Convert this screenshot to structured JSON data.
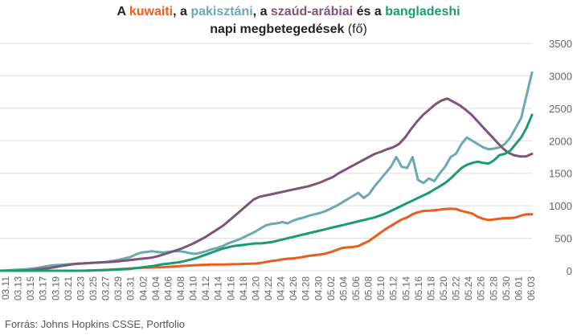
{
  "title": {
    "line1_prefix": "A ",
    "kuwait": "kuwaiti",
    "sep1": ", a ",
    "pakistan": "pakisztáni",
    "sep2": ", a ",
    "saudi": "szaúd-arábiai",
    "sep3": " és a ",
    "bangladesh": "bangladeshi",
    "line2_main": "napi megbetegedések",
    "line2_unit": " (fő)"
  },
  "source": "Forrás: Johns Hopkins CSSE, Portfolio",
  "colors": {
    "kuwait": "#ee5c1d",
    "pakistan": "#6aa9b0",
    "saudi": "#7e5579",
    "bangladesh": "#1a9b76",
    "grid": "#dddddd",
    "axis_text": "#666666"
  },
  "chart_data": {
    "type": "line",
    "x_tick_labels": [
      "03.11",
      "03.13",
      "03.15",
      "03.17",
      "03.19",
      "03.21",
      "03.23",
      "03.25",
      "03.27",
      "03.29",
      "03.31",
      "04.02",
      "04.04",
      "04.06",
      "04.08",
      "04.10",
      "04.12",
      "04.14",
      "04.16",
      "04.18",
      "04.20",
      "04.22",
      "04.24",
      "04.26",
      "04.28",
      "04.30",
      "05.02",
      "05.04",
      "05.06",
      "05.08",
      "05.10",
      "05.12",
      "05.14",
      "05.16",
      "05.18",
      "05.20",
      "05.22",
      "05.24",
      "05.26",
      "05.28",
      "05.30",
      "06.01",
      "06.03"
    ],
    "y_ticks": [
      0,
      500,
      1000,
      1500,
      2000,
      2500,
      3000,
      3500
    ],
    "ylim": [
      0,
      3500
    ],
    "grid": true,
    "y_axis_side": "right",
    "series": [
      {
        "name": "kuwaiti",
        "key": "kuwait",
        "values": [
          0,
          0,
          0,
          0,
          0,
          0,
          0,
          0,
          0,
          0,
          0,
          0,
          0,
          0,
          0,
          0,
          0,
          5,
          8,
          10,
          15,
          20,
          25,
          30,
          35,
          40,
          45,
          48,
          50,
          52,
          55,
          60,
          65,
          70,
          75,
          80,
          85,
          90,
          92,
          95,
          95,
          95,
          98,
          100,
          102,
          105,
          108,
          110,
          120,
          135,
          150,
          160,
          175,
          185,
          190,
          200,
          215,
          230,
          240,
          250,
          265,
          290,
          320,
          350,
          360,
          365,
          380,
          420,
          460,
          520,
          580,
          640,
          690,
          740,
          790,
          820,
          870,
          900,
          920,
          925,
          930,
          940,
          950,
          955,
          950,
          920,
          900,
          880,
          830,
          800,
          780,
          790,
          800,
          810,
          810,
          820,
          850,
          870,
          870
        ]
      },
      {
        "name": "pakisztáni",
        "key": "pakistan",
        "values": [
          0,
          5,
          10,
          15,
          20,
          25,
          35,
          45,
          60,
          75,
          85,
          90,
          95,
          100,
          105,
          110,
          115,
          120,
          125,
          130,
          140,
          155,
          170,
          190,
          210,
          250,
          280,
          290,
          300,
          290,
          280,
          290,
          300,
          300,
          290,
          270,
          260,
          280,
          300,
          330,
          350,
          380,
          420,
          450,
          480,
          520,
          560,
          600,
          650,
          700,
          720,
          730,
          750,
          730,
          770,
          800,
          820,
          850,
          870,
          890,
          920,
          960,
          1000,
          1050,
          1100,
          1150,
          1200,
          1120,
          1180,
          1300,
          1400,
          1500,
          1600,
          1750,
          1600,
          1580,
          1750,
          1400,
          1350,
          1420,
          1380,
          1500,
          1600,
          1750,
          1800,
          1950,
          2050,
          2000,
          1950,
          1900,
          1870,
          1880,
          1900,
          1950,
          2050,
          2200,
          2350,
          2700,
          3050
        ]
      },
      {
        "name": "szaúd-arábiai",
        "key": "saudi",
        "values": [
          0,
          0,
          0,
          0,
          5,
          10,
          20,
          30,
          40,
          55,
          70,
          85,
          100,
          110,
          115,
          120,
          125,
          130,
          135,
          140,
          150,
          160,
          170,
          180,
          190,
          200,
          220,
          250,
          280,
          310,
          340,
          380,
          420,
          470,
          520,
          580,
          640,
          700,
          780,
          860,
          940,
          1020,
          1100,
          1140,
          1160,
          1180,
          1200,
          1220,
          1240,
          1260,
          1280,
          1300,
          1330,
          1360,
          1400,
          1440,
          1500,
          1550,
          1600,
          1650,
          1700,
          1750,
          1800,
          1830,
          1870,
          1900,
          1950,
          2050,
          2180,
          2300,
          2400,
          2480,
          2560,
          2620,
          2650,
          2600,
          2550,
          2480,
          2400,
          2300,
          2200,
          2100,
          2000,
          1900,
          1820,
          1780,
          1760,
          1760,
          1800
        ]
      },
      {
        "name": "bangladeshi",
        "key": "bangladesh",
        "values": [
          0,
          0,
          0,
          0,
          0,
          0,
          0,
          0,
          0,
          0,
          0,
          0,
          0,
          0,
          0,
          0,
          2,
          5,
          8,
          10,
          12,
          15,
          20,
          25,
          30,
          40,
          50,
          60,
          70,
          85,
          100,
          110,
          120,
          130,
          150,
          170,
          190,
          220,
          250,
          280,
          310,
          340,
          360,
          380,
          390,
          400,
          410,
          420,
          420,
          430,
          440,
          460,
          480,
          500,
          520,
          540,
          560,
          580,
          600,
          620,
          640,
          660,
          680,
          700,
          720,
          740,
          760,
          780,
          800,
          820,
          850,
          880,
          920,
          960,
          1000,
          1040,
          1080,
          1120,
          1160,
          1200,
          1250,
          1300,
          1350,
          1420,
          1500,
          1580,
          1630,
          1660,
          1680,
          1660,
          1650,
          1700,
          1780,
          1800,
          1850,
          1950,
          2050,
          2200,
          2400
        ]
      }
    ]
  }
}
